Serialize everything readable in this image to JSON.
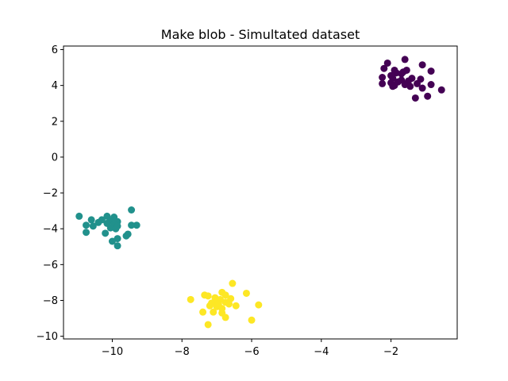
{
  "chart_data": {
    "type": "scatter",
    "title": "Make blob - Simultated dataset",
    "xlabel": "",
    "ylabel": "",
    "xlim": [
      -11.4,
      -0.1
    ],
    "ylim": [
      -10.15,
      6.2
    ],
    "xticks": [
      -10,
      -8,
      -6,
      -4,
      -2
    ],
    "yticks": [
      -10,
      -8,
      -6,
      -4,
      -2,
      0,
      2,
      4,
      6
    ],
    "xtick_labels": [
      "−10",
      "−8",
      "−6",
      "−4",
      "−2"
    ],
    "ytick_labels": [
      "−10",
      "−8",
      "−6",
      "−4",
      "−2",
      "0",
      "2",
      "4",
      "6"
    ],
    "grid": false,
    "series": [
      {
        "color": "#440154",
        "points": [
          [
            -1.6,
            5.45
          ],
          [
            -2.1,
            5.25
          ],
          [
            -1.1,
            5.15
          ],
          [
            -2.2,
            4.95
          ],
          [
            -1.9,
            4.85
          ],
          [
            -1.55,
            4.85
          ],
          [
            -1.65,
            4.75
          ],
          [
            -0.85,
            4.8
          ],
          [
            -1.85,
            4.7
          ],
          [
            -1.7,
            4.65
          ],
          [
            -2.0,
            4.55
          ],
          [
            -2.25,
            4.45
          ],
          [
            -1.95,
            4.4
          ],
          [
            -1.4,
            4.4
          ],
          [
            -1.15,
            4.35
          ],
          [
            -1.7,
            4.3
          ],
          [
            -1.5,
            4.25
          ],
          [
            -1.8,
            4.2
          ],
          [
            -2.0,
            4.15
          ],
          [
            -2.25,
            4.1
          ],
          [
            -1.25,
            4.1
          ],
          [
            -1.6,
            4.05
          ],
          [
            -0.85,
            4.05
          ],
          [
            -1.9,
            4.0
          ],
          [
            -1.95,
            3.95
          ],
          [
            -1.1,
            3.85
          ],
          [
            -1.45,
            3.95
          ],
          [
            -0.55,
            3.75
          ],
          [
            -0.95,
            3.4
          ],
          [
            -1.3,
            3.3
          ]
        ]
      },
      {
        "color": "#21918c",
        "points": [
          [
            -10.95,
            -3.3
          ],
          [
            -10.15,
            -3.3
          ],
          [
            -9.95,
            -3.35
          ],
          [
            -10.6,
            -3.5
          ],
          [
            -10.3,
            -3.5
          ],
          [
            -10.05,
            -3.55
          ],
          [
            -9.85,
            -3.6
          ],
          [
            -10.4,
            -3.65
          ],
          [
            -10.15,
            -3.7
          ],
          [
            -10.75,
            -3.8
          ],
          [
            -10.55,
            -3.85
          ],
          [
            -9.95,
            -3.75
          ],
          [
            -9.85,
            -3.85
          ],
          [
            -9.3,
            -3.8
          ],
          [
            -10.05,
            -3.95
          ],
          [
            -9.9,
            -4.0
          ],
          [
            -10.75,
            -4.2
          ],
          [
            -10.2,
            -4.25
          ],
          [
            -9.55,
            -4.3
          ],
          [
            -9.6,
            -4.4
          ],
          [
            -9.85,
            -4.55
          ],
          [
            -10.0,
            -4.7
          ],
          [
            -9.85,
            -4.95
          ],
          [
            -9.45,
            -2.95
          ],
          [
            -9.45,
            -3.8
          ]
        ]
      },
      {
        "color": "#fde725",
        "points": [
          [
            -6.55,
            -7.05
          ],
          [
            -6.15,
            -7.6
          ],
          [
            -6.85,
            -7.55
          ],
          [
            -7.35,
            -7.7
          ],
          [
            -7.25,
            -7.75
          ],
          [
            -6.75,
            -7.7
          ],
          [
            -7.05,
            -7.85
          ],
          [
            -6.9,
            -7.95
          ],
          [
            -6.6,
            -7.9
          ],
          [
            -7.75,
            -7.95
          ],
          [
            -7.0,
            -8.05
          ],
          [
            -6.75,
            -8.1
          ],
          [
            -7.15,
            -8.15
          ],
          [
            -6.95,
            -8.2
          ],
          [
            -6.65,
            -8.2
          ],
          [
            -7.2,
            -8.3
          ],
          [
            -6.45,
            -8.3
          ],
          [
            -5.8,
            -8.25
          ],
          [
            -7.0,
            -8.35
          ],
          [
            -6.85,
            -8.45
          ],
          [
            -7.1,
            -8.65
          ],
          [
            -7.4,
            -8.65
          ],
          [
            -6.85,
            -8.7
          ],
          [
            -6.75,
            -8.95
          ],
          [
            -6.0,
            -9.1
          ],
          [
            -7.25,
            -9.35
          ]
        ]
      }
    ]
  }
}
